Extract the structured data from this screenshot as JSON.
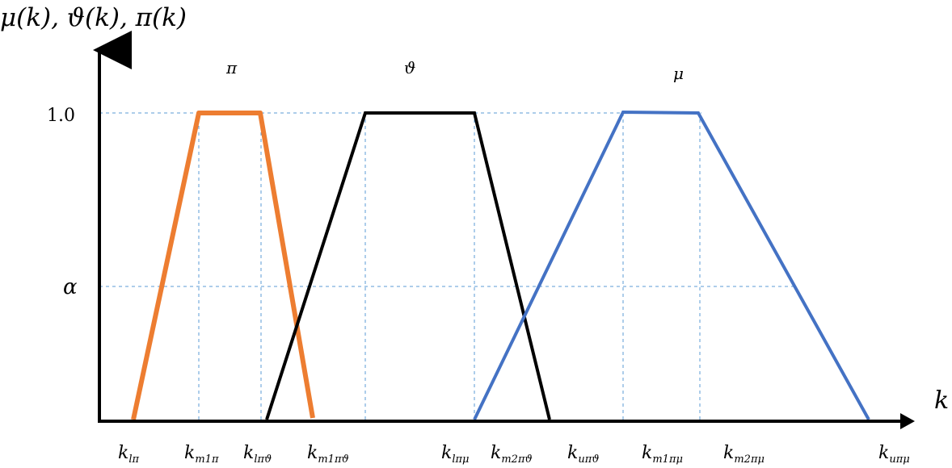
{
  "diagram": {
    "y_axis_label": "μ(k), ϑ(k), π(k)",
    "x_axis_label": "k",
    "y_ticks": {
      "one": "1.0",
      "alpha": "α"
    },
    "curve_labels": {
      "pi": "π",
      "theta": "ϑ",
      "mu": "μ"
    },
    "x_ticks": [
      {
        "base": "k",
        "sub": "lπ"
      },
      {
        "base": "k",
        "sub": "m1π"
      },
      {
        "base": "k",
        "sub": "lπϑ"
      },
      {
        "base": "k",
        "sub": "m1πϑ"
      },
      {
        "base": "k",
        "sub": "lπμ"
      },
      {
        "base": "k",
        "sub": "m2πϑ"
      },
      {
        "base": "k",
        "sub": "uπϑ"
      },
      {
        "base": "k",
        "sub": "m1πμ"
      },
      {
        "base": "k",
        "sub": "m2πμ"
      },
      {
        "base": "k",
        "sub": "uπμ"
      }
    ],
    "colors": {
      "pi": "#ED7D31",
      "theta": "#000000",
      "mu": "#4472C4",
      "guides": "#5B9BD5",
      "axis": "#000000"
    }
  }
}
